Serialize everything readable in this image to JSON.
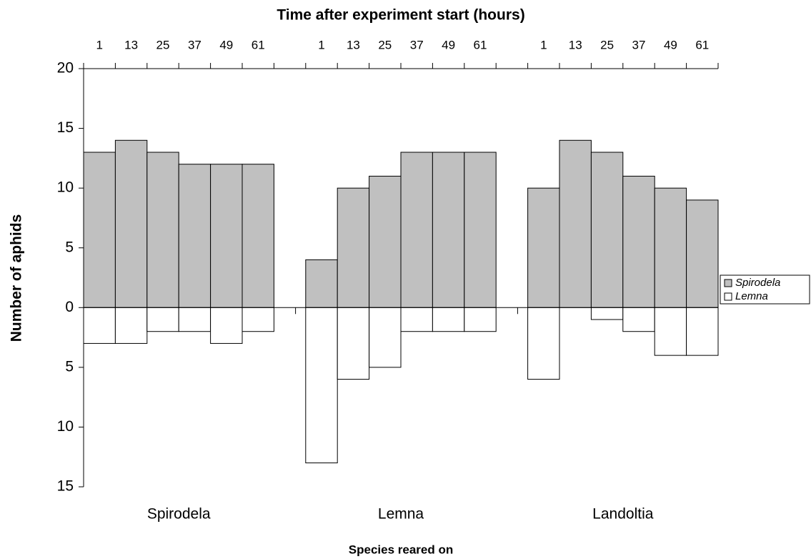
{
  "chart_data": {
    "type": "bar",
    "title": "Time after experiment start (hours)",
    "x_label": "Species reared on",
    "y_label": "Number of aphids",
    "groups": [
      "Spirodela",
      "Lemna",
      "Landoltia"
    ],
    "categories": [
      1,
      13,
      25,
      37,
      49,
      61,
      1,
      13,
      25,
      37,
      49,
      61,
      1,
      13,
      25,
      37,
      49,
      61
    ],
    "series": [
      {
        "name": "Spirodela",
        "color": "#c0c0c0",
        "values": [
          13,
          14,
          13,
          12,
          12,
          12,
          4,
          10,
          11,
          13,
          13,
          13,
          10,
          14,
          13,
          11,
          10,
          9
        ]
      },
      {
        "name": "Lemna",
        "color": "#ffffff",
        "values": [
          -3,
          -3,
          -2,
          -2,
          -3,
          -2,
          -13,
          -6,
          -5,
          -2,
          -2,
          -2,
          -6,
          0,
          -1,
          -2,
          -4,
          -4
        ]
      }
    ],
    "ylim": [
      -15,
      20
    ],
    "yticks": [
      {
        "value": -15,
        "label": "15"
      },
      {
        "value": -10,
        "label": "10"
      },
      {
        "value": -5,
        "label": "5"
      },
      0,
      5,
      10,
      15,
      20
    ],
    "legend": "right"
  }
}
